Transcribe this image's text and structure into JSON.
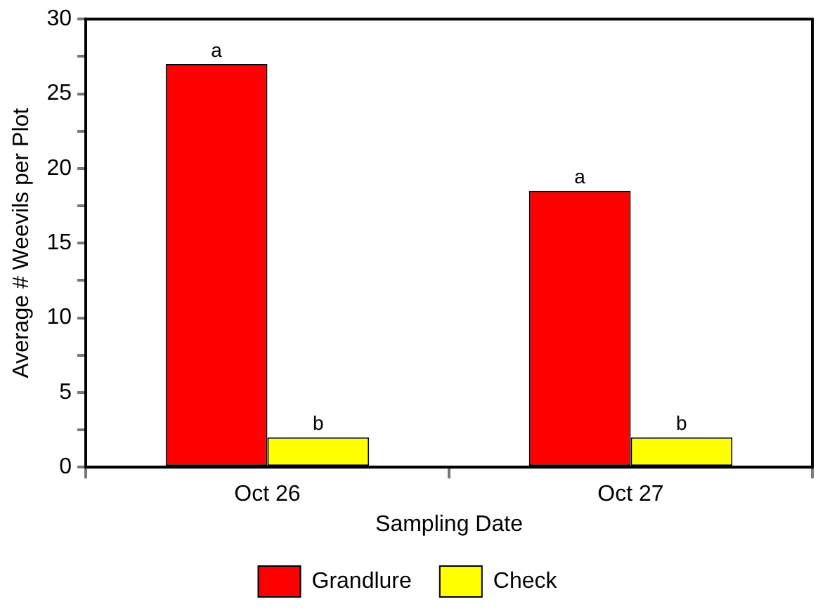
{
  "chart_data": {
    "type": "bar",
    "xlabel": "Sampling Date",
    "ylabel": "Average # Weevils per Plot",
    "categories": [
      "Oct 26",
      "Oct 27"
    ],
    "series": [
      {
        "name": "Grandlure",
        "color": "#ff0000",
        "values": [
          27,
          18.5
        ],
        "value_labels": [
          "a",
          "a"
        ]
      },
      {
        "name": "Check",
        "color": "#ffff00",
        "values": [
          2,
          2
        ],
        "value_labels": [
          "b",
          "b"
        ]
      }
    ],
    "ylim": [
      0,
      30
    ],
    "yticks": [
      0,
      {
        "value": 2.5,
        "label": null
      },
      5,
      {
        "value": 7.5,
        "label": null
      },
      10,
      {
        "value": 12.5,
        "label": null
      },
      15,
      {
        "value": 17.5,
        "label": null
      },
      20,
      {
        "value": 22.5,
        "label": null
      },
      25,
      {
        "value": 27.5,
        "label": null
      },
      30
    ],
    "grid": false,
    "legend": "bottom"
  }
}
